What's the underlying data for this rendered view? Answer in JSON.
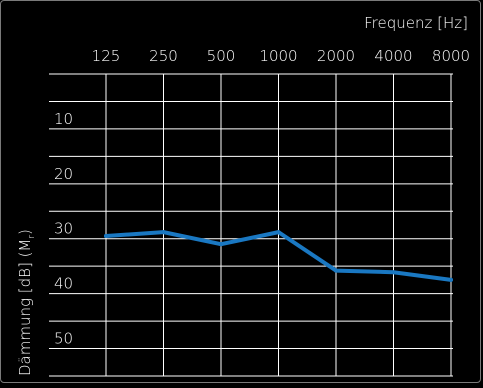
{
  "chart_data": {
    "type": "line",
    "x_axis_title": "Frequenz [Hz]",
    "y_axis_title": "Dämmung [dB] (M",
    "y_axis_title_subscript": "r",
    "y_axis_title_close": ")",
    "categories": [
      "125",
      "250",
      "500",
      "1000",
      "2000",
      "4000",
      "8000"
    ],
    "series": [
      {
        "values": [
          29.5,
          28.8,
          31.0,
          28.8,
          35.8,
          36.1,
          37.5
        ]
      }
    ],
    "y_ticks": [
      "10",
      "20",
      "30",
      "40",
      "50"
    ],
    "ylim": [
      0,
      55
    ],
    "y_inverted": true,
    "x_axis_position": "top",
    "grid": true,
    "line_color": "#1a78c2",
    "background_color": "#000000",
    "grid_color": "#ffffff"
  }
}
